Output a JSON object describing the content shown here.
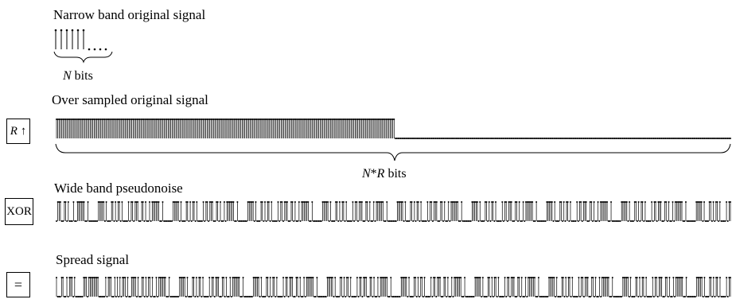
{
  "labels": {
    "narrow_band": "Narrow band original signal",
    "n_bits_var": "N",
    "n_bits_word": "bits",
    "oversampled": "Over sampled original signal",
    "nr_bits_n": "N",
    "nr_bits_star": "*",
    "nr_bits_r": "R",
    "nr_bits_word": "bits",
    "pseudonoise": "Wide band pseudonoise",
    "spread": "Spread signal"
  },
  "operators": {
    "upsample_var": "R",
    "upsample_arrow": "↑",
    "xor": "XOR",
    "equals": "="
  },
  "signals": {
    "narrow": "1111110000",
    "oversampled": "1111111111111111111111111111111111111111111111111111111111111111111111111111111111111111111111111111111111111111111111111111111111111111111111111111111111111111111111111111111111111111111111111111111111111111111111111111111111111111111111111111111111111111111110000000000000000000000000000000000000000000000000000000000000000000000000000000000000000000000000000000000000000000000000000000000000000000000000000000000000000000000000000000000000000000000000000000000000000000000000000000000000000000000000000000000000000000",
    "pseudonoise": "01110011010001001111110010000000111110100011010110100001011011100110100101111110010000000111110100011010110100001011011100110100101111110010000000111110100011010110100001011011100110100101111110010000000111110100011010110100001011011100110100101111110010000000111110100011010110100001011011100110100101111110010000000111110100011010110100001011011100110100101111110010000000111110100011010110100001011011100110100101111110010000000111110100011010110100001011011100110100101111110010000000111110100011010110100001011",
    "spread": "10001100101110100000011101111111100000101110010101011101001111010011010110100101111110010000000111110100011010110100001011011100110100101111110010000000111110100011010110100001011011100110100101111110010000000111110100011010110100001011011100110100101111110010000000111110100011010110100001011011100110100101111110010000000111110100011010110100001011011100110100101111110010000000111110100011010110100001011011100110100101111110010000000111110100011010110100001011011100110100101111110010000000111110100011010110100001011"
  }
}
